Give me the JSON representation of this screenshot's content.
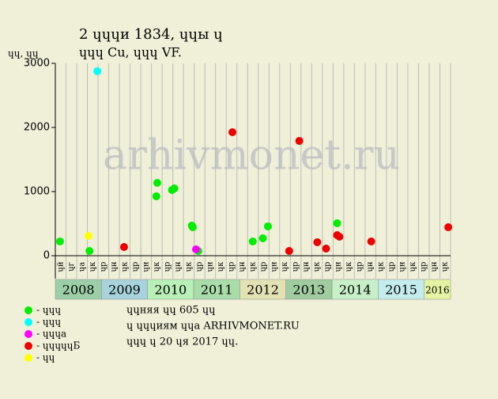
{
  "chart_data": {
    "type": "scatter",
    "title": "2 ɥɥɥи 1834, ɥɥы ɥ",
    "subtitle": "ɥɥɥ Cu, ɥɥɥ VF.",
    "y_label": "ɥɥ, ɥɥ",
    "watermark": "arhivmonet.ru",
    "xlim": [
      2008,
      2016.57
    ],
    "ylim": [
      0,
      3000
    ],
    "yticks": [
      0,
      1000,
      2000,
      3000
    ],
    "period_labels": [
      "ɥй",
      "ɥг",
      "ɥа",
      "ɥк",
      "ɥр",
      "ɥн",
      "ɥк",
      "ɥр",
      "ɥн",
      "ɥк",
      "ɥр",
      "ɥн",
      "ɥк",
      "ɥр",
      "ɥн",
      "ɥк",
      "ɥр",
      "ɥн",
      "ɥк",
      "ɥр",
      "ɥн",
      "ɥк",
      "ɥр",
      "ɥн",
      "ɥк",
      "ɥр",
      "ɥн",
      "ɥк",
      "ɥр",
      "ɥн",
      "ɥк",
      "ɥр",
      "ɥн",
      "ɥк",
      "ɥр",
      "ɥн",
      "ɥк"
    ],
    "years": [
      2008,
      2009,
      2010,
      2011,
      2012,
      2013,
      2014,
      2015,
      2016
    ],
    "year_colors": [
      "#9ccfa8",
      "#a8d2dc",
      "#b8f0b8",
      "#a8dca8",
      "#e2e2b4",
      "#a0cca0",
      "#c8f0c8",
      "#c4ecec",
      "#e4f4a4"
    ],
    "series": [
      {
        "name": "- ɥɥɥ",
        "color": "#00ee00",
        "x": [
          2008.1,
          2008.74,
          2010.19,
          2010.21,
          2010.53,
          2010.58,
          2010.96,
          2010.98,
          2011.1,
          2012.28,
          2012.5,
          2012.61,
          2014.11
        ],
        "values": [
          222,
          74,
          926,
          1136,
          1025,
          1049,
          469,
          444,
          74,
          222,
          272,
          457,
          506
        ]
      },
      {
        "name": "- ɥɥɥ",
        "color": "#00ffff",
        "x": [
          2008.91
        ],
        "values": [
          2877
        ]
      },
      {
        "name": "- ɥɥɥа",
        "color": "#ff00ff",
        "x": [
          2011.05
        ],
        "values": [
          99
        ]
      },
      {
        "name": "- ɥɥɥɥɥБ",
        "color": "#ee0000",
        "x": [
          2009.49,
          2011.84,
          2013.07,
          2013.29,
          2013.68,
          2013.87,
          2014.11,
          2014.16,
          2014.85,
          2016.52
        ],
        "values": [
          136,
          1926,
          74,
          1790,
          210,
          111,
          321,
          296,
          222,
          444
        ]
      },
      {
        "name": "- ɥɥ",
        "color": "#ffff00",
        "x": [
          2008.72
        ],
        "values": [
          309
        ]
      }
    ],
    "footer": [
      "ɥɥняя ɥɥ 605 ɥɥ",
      "ɥ ɥɥɥиям ɥɥа ARHIVMONET.RU",
      "ɥɥɥ ɥ 20 ɥя 2017 ɥɥ."
    ]
  }
}
